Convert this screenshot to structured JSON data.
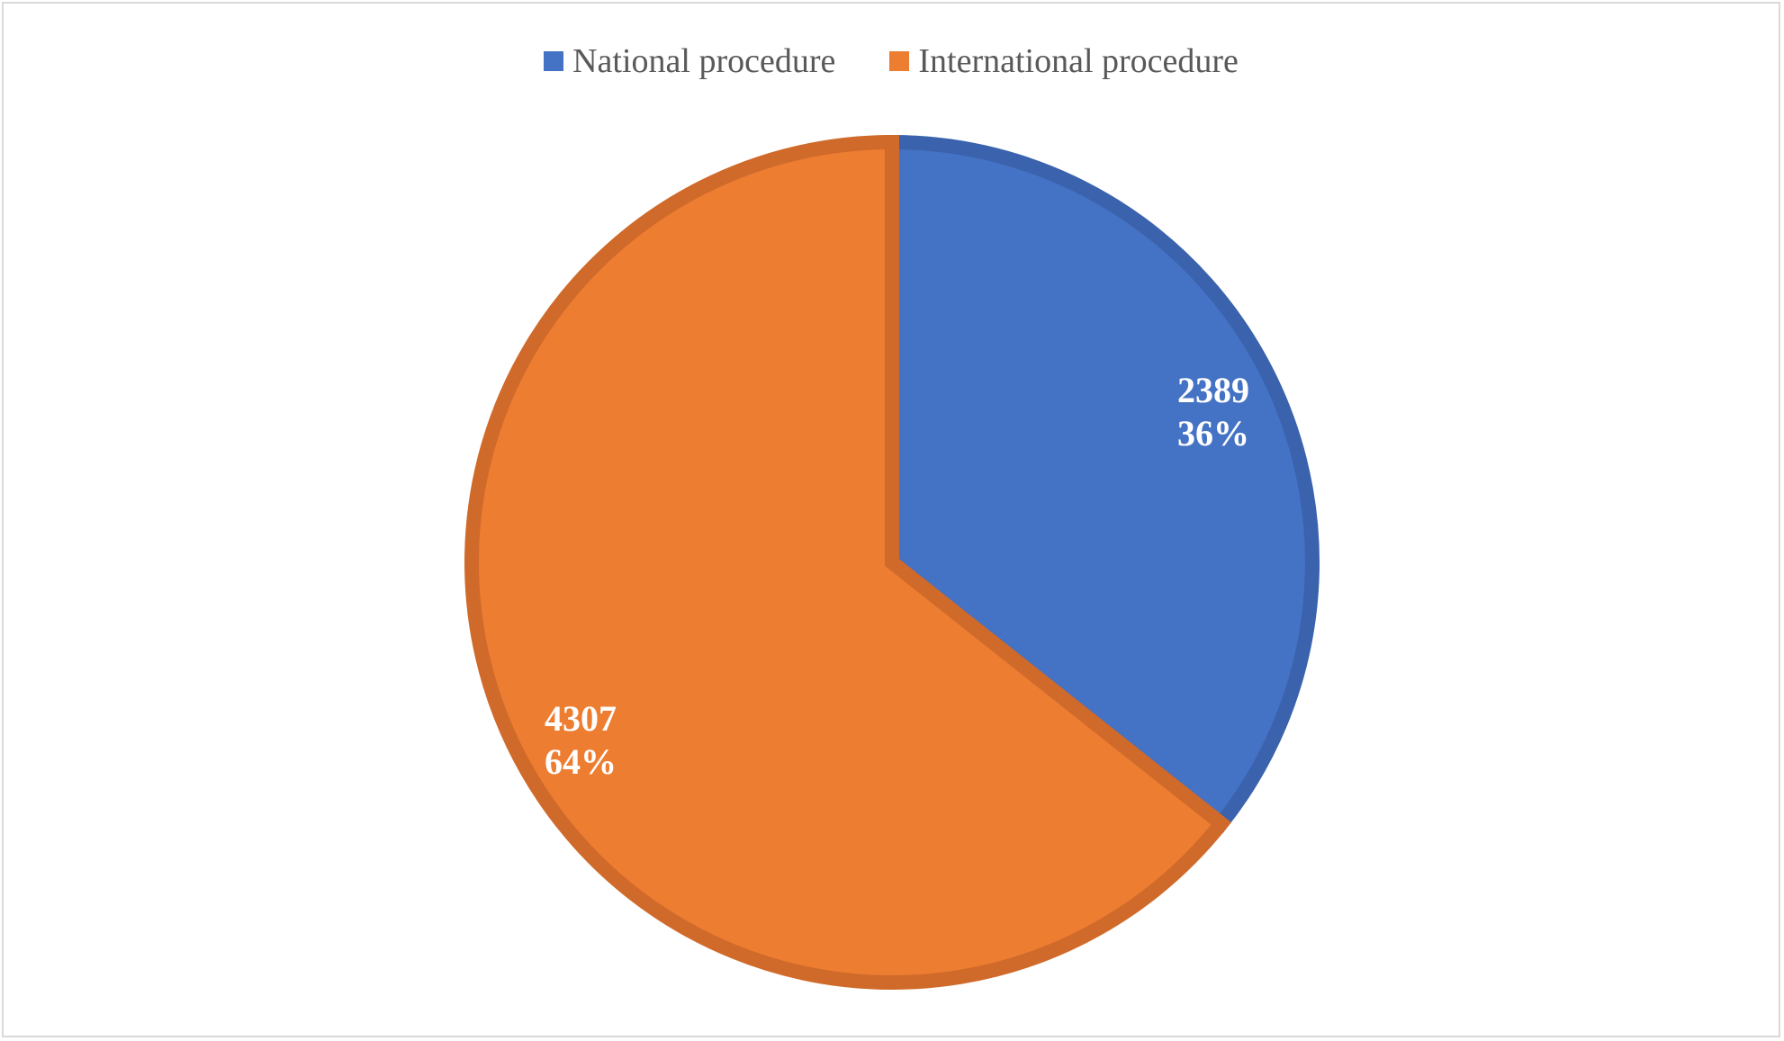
{
  "chart_data": {
    "type": "pie",
    "title": "",
    "legend_position": "top",
    "slices": [
      {
        "name": "National procedure",
        "value": 2389,
        "percent_label": "36%",
        "color": "#4472C4",
        "border": "#3A62AD"
      },
      {
        "name": "International procedure",
        "value": 4307,
        "percent_label": "64%",
        "color": "#ED7D31",
        "border": "#D06A2A"
      }
    ]
  }
}
